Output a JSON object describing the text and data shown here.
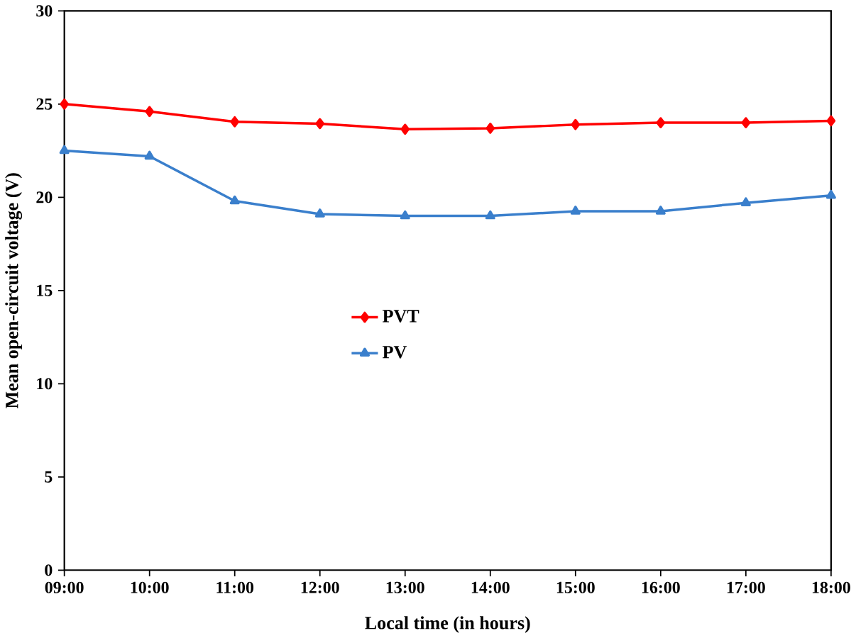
{
  "chart_data": {
    "type": "line",
    "xlabel": "Local time (in hours)",
    "ylabel": "Mean open-circuit voltage (V)",
    "categories": [
      "09:00",
      "10:00",
      "11:00",
      "12:00",
      "13:00",
      "14:00",
      "15:00",
      "16:00",
      "17:00",
      "18:00"
    ],
    "series": [
      {
        "name": "PVT",
        "color": "#ff0000",
        "marker": "diamond",
        "values": [
          25.0,
          24.6,
          24.05,
          23.95,
          23.65,
          23.7,
          23.9,
          24.0,
          24.0,
          24.1
        ]
      },
      {
        "name": "PV",
        "color": "#3a7fcc",
        "marker": "triangle",
        "values": [
          22.5,
          22.2,
          19.8,
          19.1,
          19.0,
          19.0,
          19.25,
          19.25,
          19.7,
          20.1
        ]
      }
    ],
    "ylim": [
      0,
      30
    ],
    "yticks": [
      0,
      5,
      10,
      15,
      20,
      25,
      30
    ],
    "grid": false,
    "legend": "center",
    "line_style": "solid"
  }
}
